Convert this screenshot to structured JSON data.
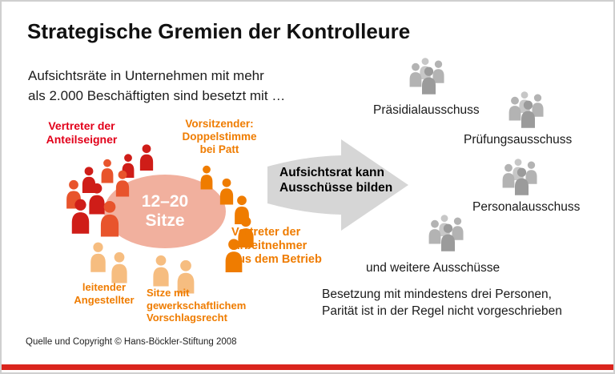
{
  "header": {
    "title": "Strategische Gremien der Kontrolleure",
    "subtitle": [
      "Aufsichtsräte in Unternehmen mit mehr",
      "als 2.000 Beschäftigten sind besetzt mit …"
    ]
  },
  "board": {
    "seats": [
      "12–20",
      "Sitze"
    ],
    "label_shareholders": [
      "Vertreter der",
      "Anteilseigner"
    ],
    "label_chairman": [
      "Vorsitzender:",
      "Doppelstimme",
      "bei Patt"
    ],
    "label_employees": [
      "Vertreter der",
      "Arbeitnehmer",
      "aus dem Betrieb"
    ],
    "label_executive": [
      "leitender",
      "Angestellter"
    ],
    "label_union": [
      "Sitze mit",
      "gewerkschaftlichem",
      "Vorschlagsrecht"
    ]
  },
  "arrow": {
    "text": [
      "Aufsichtsrat kann",
      "Ausschüsse bilden"
    ]
  },
  "committees": [
    {
      "label": "Präsidialausschuss"
    },
    {
      "label": "Prüfungsausschuss"
    },
    {
      "label": "Personalausschuss"
    },
    {
      "label": "und weitere Ausschüsse"
    }
  ],
  "note": [
    "Besetzung mit mindestens drei Personen,",
    "Parität ist in der Regel nicht vorgeschrieben"
  ],
  "source": "Quelle und Copyright © Hans-Böckler-Stiftung 2008",
  "colors": {
    "red": "#cf1d18",
    "red_bright": "#e8542c",
    "orange": "#ef7c00",
    "peach": "#f6bd80",
    "ellipse": "#f1b09e",
    "arrow_gray": "#d6d6d6",
    "gray_light": "#c7c7c7",
    "gray_mid": "#b3b3b3",
    "gray_dark": "#9b9b9b",
    "label_red": "#e2001a",
    "label_orange": "#ef7c00",
    "footer_bar": "#da251d"
  }
}
